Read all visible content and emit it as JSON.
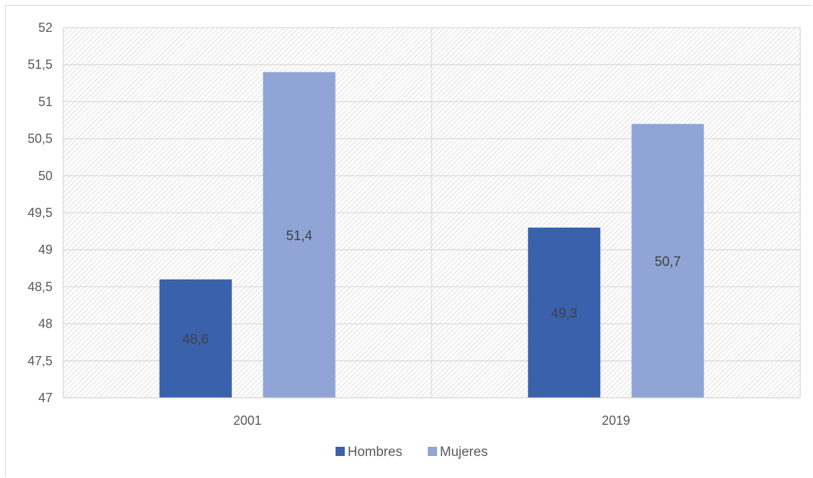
{
  "chart_data": {
    "type": "bar",
    "categories": [
      "2001",
      "2019"
    ],
    "series": [
      {
        "name": "Hombres",
        "values": [
          48.6,
          49.3
        ],
        "labels": [
          "48,6",
          "49,3"
        ],
        "color": "#3a62ac"
      },
      {
        "name": "Mujeres",
        "values": [
          51.4,
          50.7
        ],
        "labels": [
          "51,4",
          "50,7"
        ],
        "color": "#90a5d6"
      }
    ],
    "title": "",
    "xlabel": "",
    "ylabel": "",
    "ylim": [
      47,
      52
    ],
    "yticks": [
      47,
      47.5,
      48,
      48.5,
      49,
      49.5,
      50,
      50.5,
      51,
      51.5,
      52
    ],
    "ytick_labels": [
      "47",
      "47,5",
      "48",
      "48,5",
      "49",
      "49,5",
      "50",
      "50,5",
      "51",
      "51,5",
      "52"
    ],
    "grid": true,
    "plot_background": "hatched",
    "legend_position": "bottom"
  }
}
